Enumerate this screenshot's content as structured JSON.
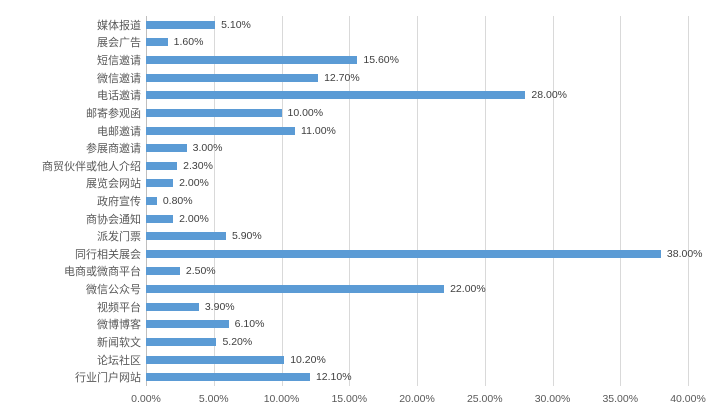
{
  "chart_data": {
    "type": "bar",
    "orientation": "horizontal",
    "title": "",
    "xlabel": "",
    "ylabel": "",
    "categories": [
      "媒体报道",
      "展会广告",
      "短信邀请",
      "微信邀请",
      "电话邀请",
      "邮寄参观函",
      "电邮邀请",
      "参展商邀请",
      "商贸伙伴或他人介绍",
      "展览会网站",
      "政府宣传",
      "商协会通知",
      "派发门票",
      "同行相关展会",
      "电商或微商平台",
      "微信公众号",
      "视频平台",
      "微博博客",
      "新闻软文",
      "论坛社区",
      "行业门户网站"
    ],
    "values": [
      5.1,
      1.6,
      15.6,
      12.7,
      28.0,
      10.0,
      11.0,
      3.0,
      2.3,
      2.0,
      0.8,
      2.0,
      5.9,
      38.0,
      2.5,
      22.0,
      3.9,
      6.1,
      5.2,
      10.2,
      12.1
    ],
    "value_labels": [
      "5.10%",
      "1.60%",
      "15.60%",
      "12.70%",
      "28.00%",
      "10.00%",
      "11.00%",
      "3.00%",
      "2.30%",
      "2.00%",
      "0.80%",
      "2.00%",
      "5.90%",
      "38.00%",
      "2.50%",
      "22.00%",
      "3.90%",
      "6.10%",
      "5.20%",
      "10.20%",
      "12.10%"
    ],
    "x_ticks": [
      "0.00%",
      "5.00%",
      "10.00%",
      "15.00%",
      "20.00%",
      "25.00%",
      "30.00%",
      "35.00%",
      "40.00%"
    ],
    "xlim": [
      0,
      40
    ],
    "grid": "vertical-gridlines-on",
    "legend": "none",
    "colors": {
      "bar": "#5b9bd5",
      "gridline": "#d9d9d9",
      "axis_line": "#bfbfbf",
      "data_label_text": "#404040",
      "tick_label_text": "#595959",
      "background": "#ffffff"
    }
  }
}
